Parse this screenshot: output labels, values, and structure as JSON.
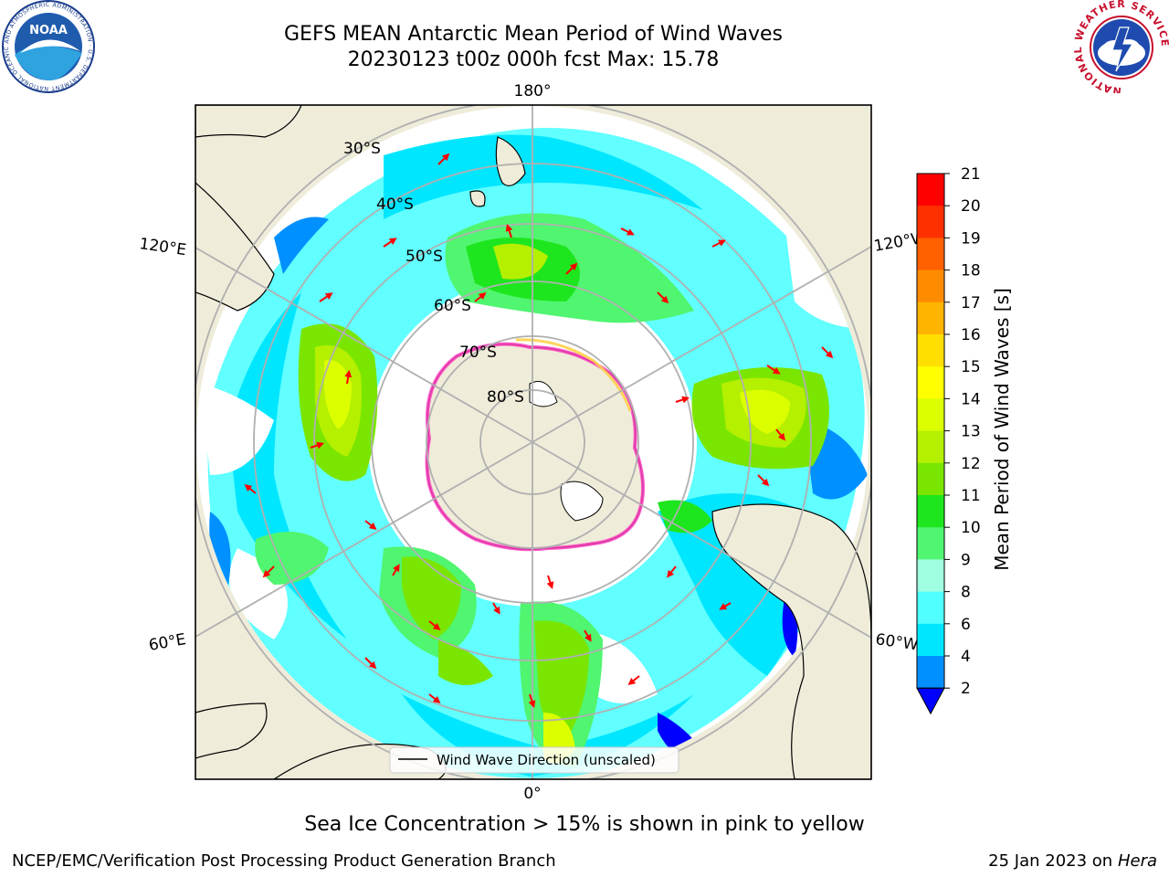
{
  "title": {
    "line1": "GEFS MEAN Antarctic Mean Period of Wind Waves",
    "line2": "20230123 t00z 000h fcst   Max: 15.78"
  },
  "logos": {
    "noaa_text": "NOAA",
    "noaa_ring": "NATIONAL OCEANIC AND ATMOSPHERIC ADMINISTRATION · U.S. DEPARTMENT OF COMMERCE",
    "nws_ring": "NATIONAL WEATHER SERVICE"
  },
  "map": {
    "projection": "south polar stereographic",
    "lon_labels": {
      "top": "180°",
      "bottom": "0°",
      "upper_left": "120°E",
      "upper_right": "120°W",
      "lower_left": "60°E",
      "lower_right": "60°W"
    },
    "lat_labels": [
      "30°S",
      "40°S",
      "50°S",
      "60°S",
      "70°S",
      "80°S"
    ],
    "legend_label": "Wind Wave Direction (unscaled)"
  },
  "colorbar": {
    "label": "Mean Period of Wind Waves [s]",
    "ticks": [
      "21",
      "20",
      "19",
      "18",
      "17",
      "16",
      "15",
      "14",
      "13",
      "12",
      "11",
      "10",
      "9",
      "8",
      "6",
      "4",
      "2"
    ],
    "colors": [
      "#ff0000",
      "#ff3000",
      "#ff6000",
      "#ff8c00",
      "#ffb400",
      "#ffde00",
      "#ffff00",
      "#dcff00",
      "#b4f000",
      "#7ae600",
      "#1ee61e",
      "#50f570",
      "#a0ffe0",
      "#50ffff",
      "#00e6ff",
      "#0090ff",
      "#0000ff"
    ]
  },
  "sea_ice_note": "Sea Ice Concentration > 15% is shown in pink to yellow",
  "footer": {
    "left": "NCEP/EMC/Verification Post Processing Product Generation Branch",
    "right_date": "25 Jan 2023 on ",
    "right_machine": "Hera"
  }
}
